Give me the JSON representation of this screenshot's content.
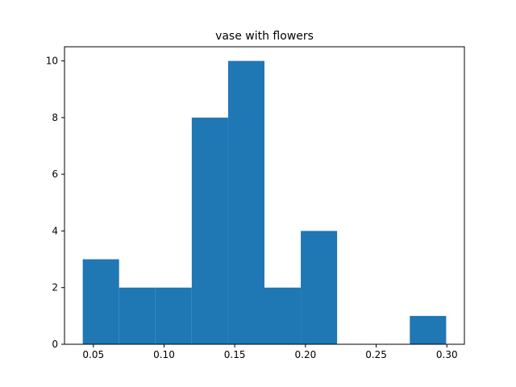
{
  "chart_data": {
    "type": "bar",
    "title": "vase with flowers",
    "xlabel": "",
    "ylabel": "",
    "bin_edges": [
      0.0425,
      0.0682,
      0.0939,
      0.1196,
      0.1453,
      0.171,
      0.1967,
      0.2224,
      0.2481,
      0.2738,
      0.2995
    ],
    "values": [
      3,
      2,
      2,
      8,
      10,
      2,
      4,
      0,
      0,
      1
    ],
    "xlim": [
      0.0296,
      0.3124
    ],
    "ylim": [
      0,
      10.5
    ],
    "xticks": [
      0.05,
      0.1,
      0.15,
      0.2,
      0.25,
      0.3
    ],
    "xtick_labels": [
      "0.05",
      "0.10",
      "0.15",
      "0.20",
      "0.25",
      "0.30"
    ],
    "yticks": [
      0,
      2,
      4,
      6,
      8,
      10
    ],
    "ytick_labels": [
      "0",
      "2",
      "4",
      "6",
      "8",
      "10"
    ],
    "grid": false,
    "bar_color": "#1f77b4"
  }
}
